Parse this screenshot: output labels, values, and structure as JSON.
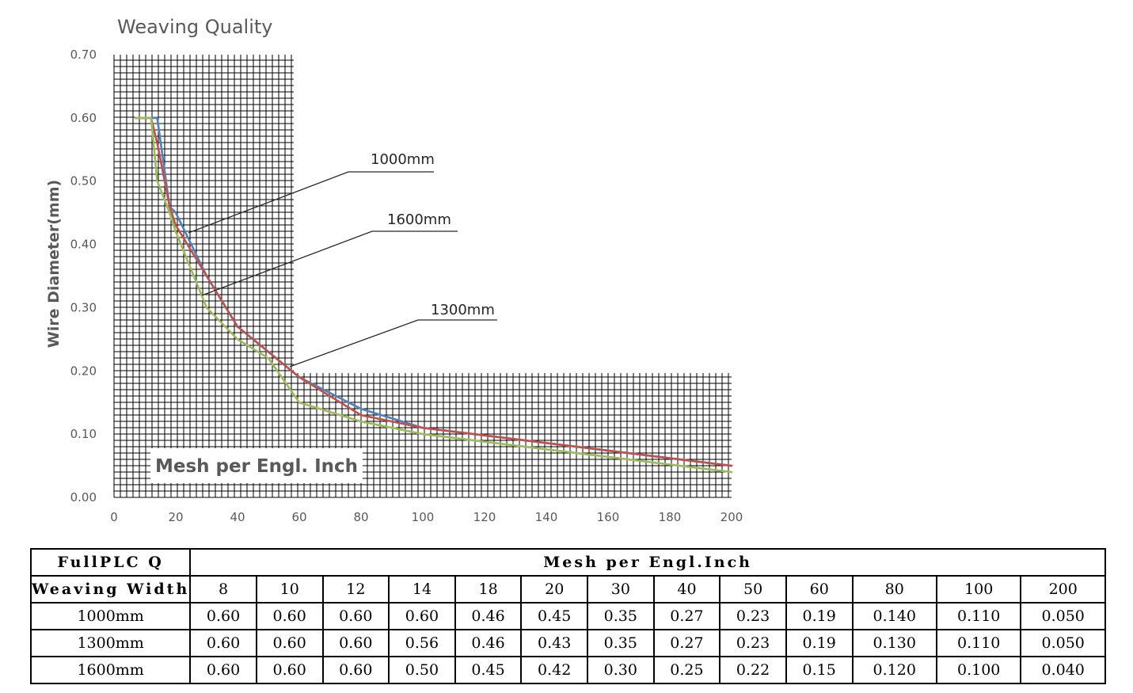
{
  "chart_data": {
    "type": "line",
    "title": "Weaving Quality",
    "xlabel": "Mesh per Engl. Inch",
    "ylabel": "Wire Diameter(mm)",
    "xlim": [
      0,
      200
    ],
    "ylim": [
      0,
      0.7
    ],
    "x_ticks": [
      "0",
      "20",
      "40",
      "60",
      "80",
      "100",
      "120",
      "140",
      "160",
      "180",
      "200"
    ],
    "y_ticks": [
      "0.00",
      "0.10",
      "0.20",
      "0.30",
      "0.40",
      "0.50",
      "0.60",
      "0.70"
    ],
    "series": [
      {
        "name": "1000mm",
        "color": "#4F81BD",
        "x": [
          8,
          10,
          12,
          14,
          18,
          20,
          30,
          40,
          50,
          60,
          80,
          100,
          200
        ],
        "values": [
          0.6,
          0.6,
          0.6,
          0.6,
          0.46,
          0.45,
          0.35,
          0.27,
          0.23,
          0.19,
          0.14,
          0.11,
          0.05
        ]
      },
      {
        "name": "1300mm",
        "color": "#C0504D",
        "x": [
          8,
          10,
          12,
          14,
          18,
          20,
          30,
          40,
          50,
          60,
          80,
          100,
          200
        ],
        "values": [
          0.6,
          0.6,
          0.6,
          0.56,
          0.46,
          0.43,
          0.35,
          0.27,
          0.23,
          0.19,
          0.13,
          0.11,
          0.05
        ]
      },
      {
        "name": "1600mm",
        "color": "#9BBB59",
        "x": [
          8,
          10,
          12,
          14,
          18,
          20,
          30,
          40,
          50,
          60,
          80,
          100,
          200
        ],
        "values": [
          0.6,
          0.6,
          0.6,
          0.5,
          0.45,
          0.42,
          0.3,
          0.25,
          0.22,
          0.15,
          0.12,
          0.1,
          0.04
        ]
      }
    ],
    "annotations": [
      "1000mm",
      "1600mm",
      "1300mm"
    ]
  },
  "table": {
    "header_left": "FullPLC Q",
    "header_right": "Mesh per Engl.Inch",
    "row_label_header": "Weaving Width",
    "columns": [
      "8",
      "10",
      "12",
      "14",
      "18",
      "20",
      "30",
      "40",
      "50",
      "60",
      "80",
      "100",
      "200"
    ],
    "rows": [
      {
        "label": "1000mm",
        "values": [
          "0.60",
          "0.60",
          "0.60",
          "0.60",
          "0.46",
          "0.45",
          "0.35",
          "0.27",
          "0.23",
          "0.19",
          "0.140",
          "0.110",
          "0.050"
        ]
      },
      {
        "label": "1300mm",
        "values": [
          "0.60",
          "0.60",
          "0.60",
          "0.56",
          "0.46",
          "0.43",
          "0.35",
          "0.27",
          "0.23",
          "0.19",
          "0.130",
          "0.110",
          "0.050"
        ]
      },
      {
        "label": "1600mm",
        "values": [
          "0.60",
          "0.60",
          "0.60",
          "0.50",
          "0.45",
          "0.42",
          "0.30",
          "0.25",
          "0.22",
          "0.15",
          "0.120",
          "0.100",
          "0.040"
        ]
      }
    ]
  }
}
